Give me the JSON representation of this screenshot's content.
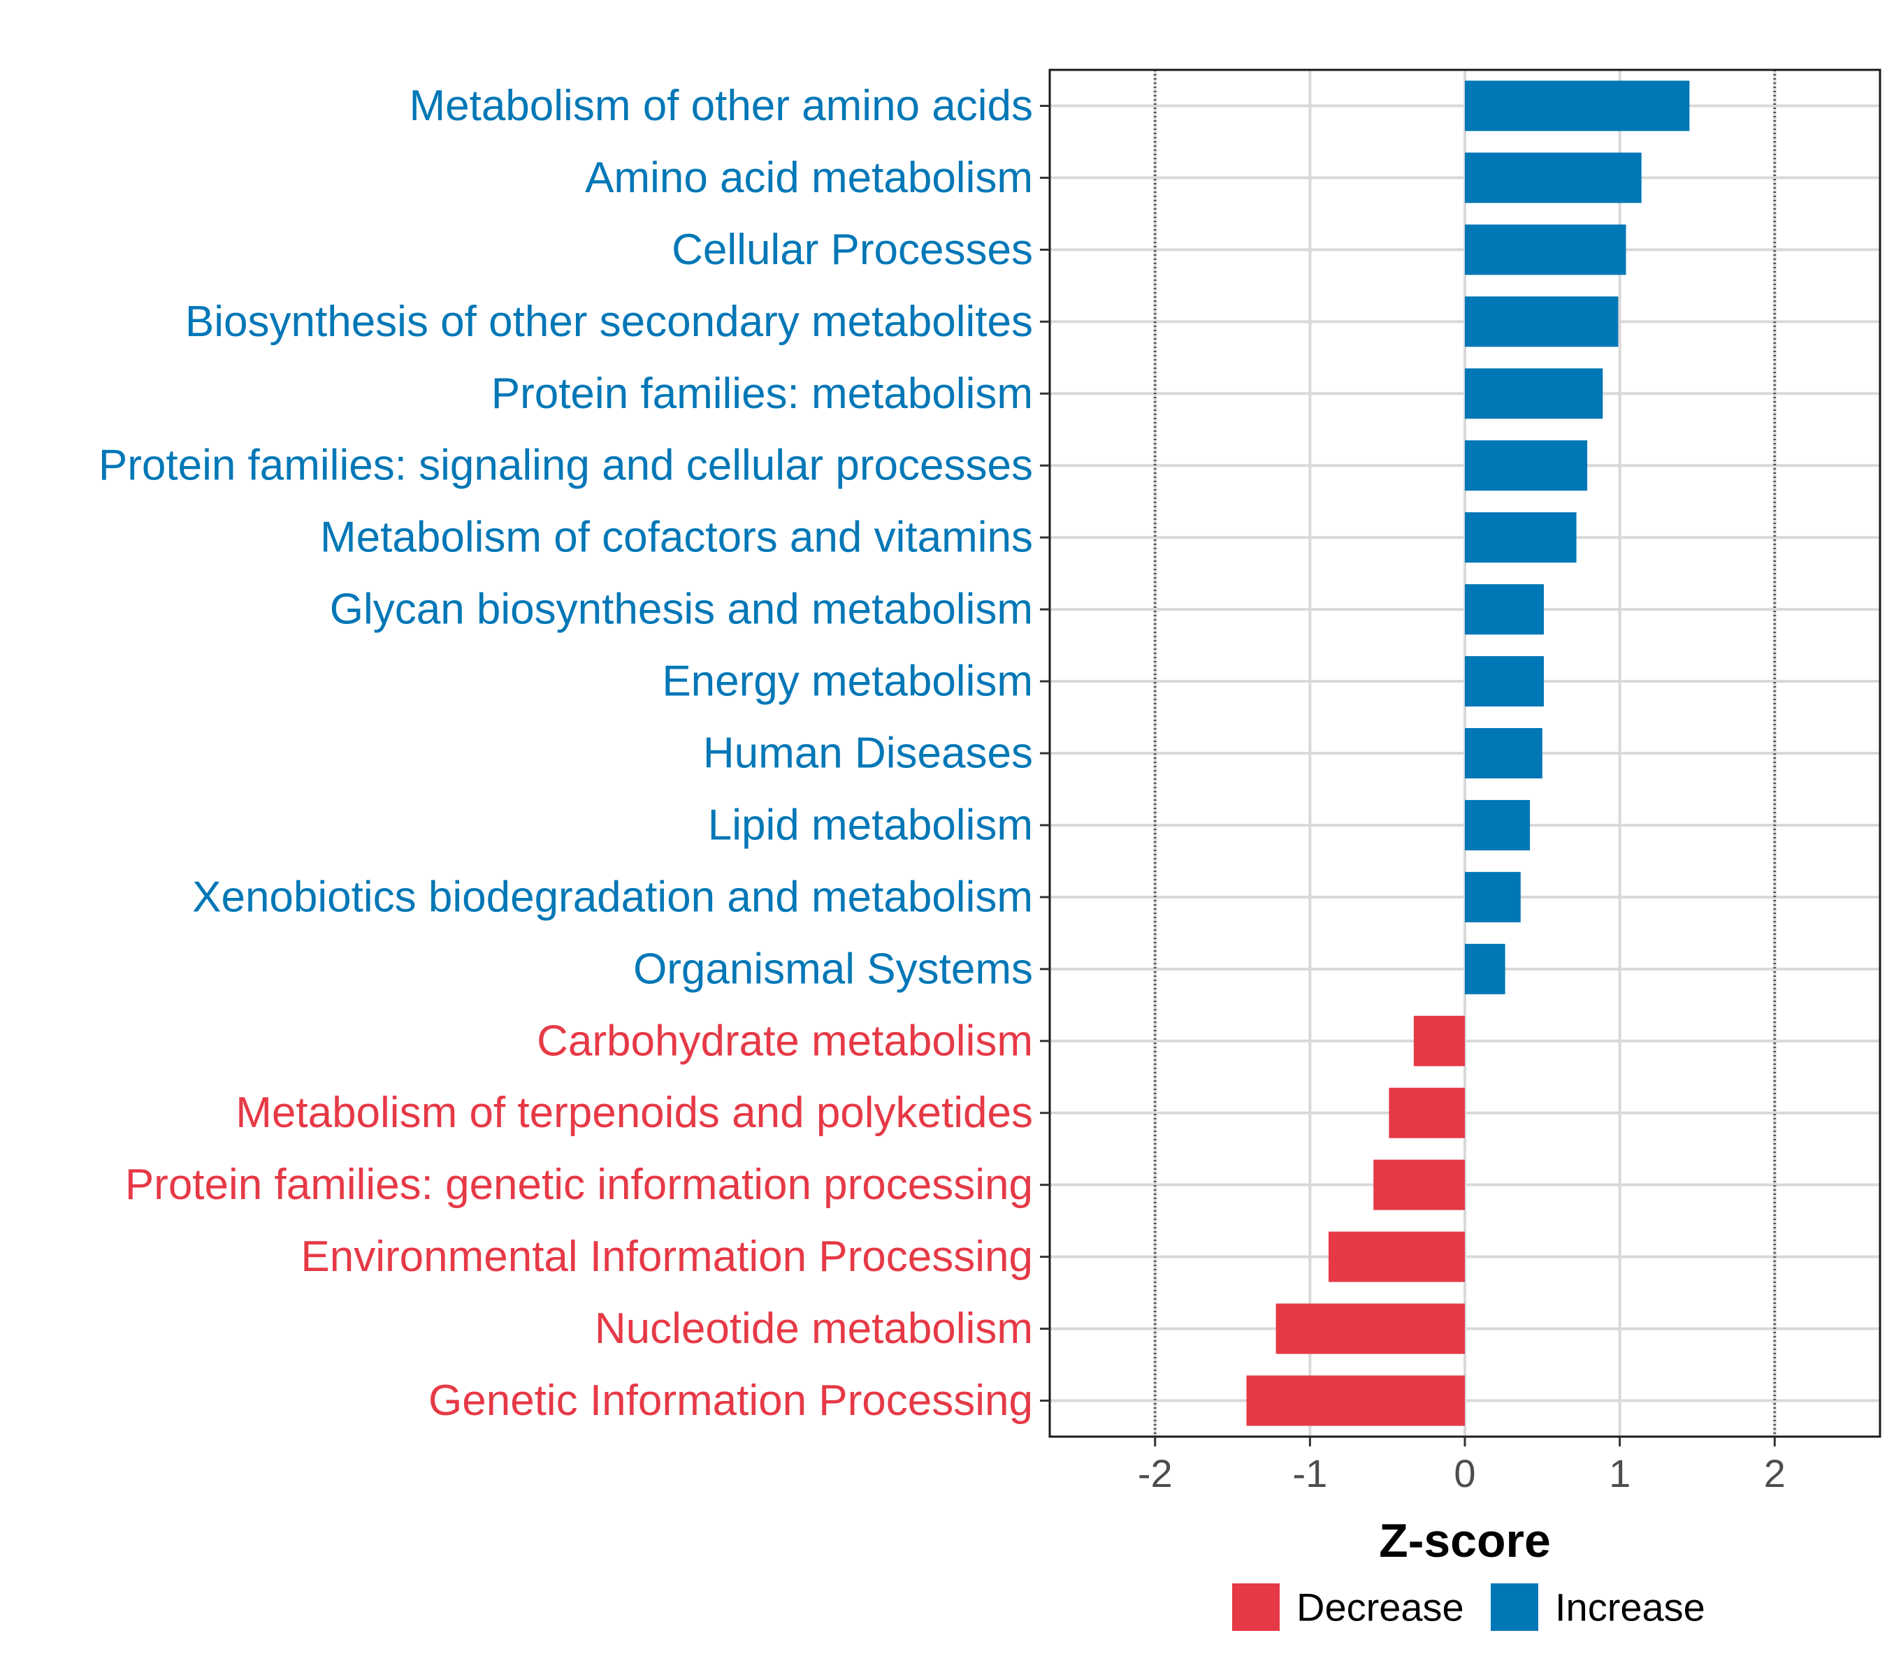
{
  "chart_data": {
    "type": "bar",
    "orientation": "horizontal",
    "categories": [
      "Metabolism of other amino acids",
      "Amino acid metabolism",
      "Cellular Processes",
      "Biosynthesis of other secondary metabolites",
      "Protein families: metabolism",
      "Protein families: signaling and cellular processes",
      "Metabolism of cofactors and vitamins",
      "Glycan biosynthesis and metabolism",
      "Energy metabolism",
      "Human Diseases",
      "Lipid metabolism",
      "Xenobiotics biodegradation and metabolism",
      "Organismal Systems",
      "Carbohydrate metabolism",
      "Metabolism of terpenoids and polyketides",
      "Protein families: genetic information processing",
      "Environmental Information Processing",
      "Nucleotide metabolism",
      "Genetic Information Processing"
    ],
    "values": [
      1.45,
      1.14,
      1.04,
      0.99,
      0.89,
      0.79,
      0.72,
      0.51,
      0.51,
      0.5,
      0.42,
      0.36,
      0.26,
      -0.33,
      -0.49,
      -0.59,
      -0.88,
      -1.22,
      -1.41
    ],
    "groups": [
      "Increase",
      "Increase",
      "Increase",
      "Increase",
      "Increase",
      "Increase",
      "Increase",
      "Increase",
      "Increase",
      "Increase",
      "Increase",
      "Increase",
      "Increase",
      "Decrease",
      "Decrease",
      "Decrease",
      "Decrease",
      "Decrease",
      "Decrease"
    ],
    "title": "",
    "xlabel": "Z-score",
    "ylabel": "",
    "xlim": [
      -2.68,
      2.68
    ],
    "xticks": [
      -2,
      -1,
      0,
      1,
      2
    ],
    "xtick_labels": [
      "-2",
      "-1",
      "0",
      "1",
      "2"
    ],
    "reference_lines": [
      -2,
      2
    ],
    "grid": true,
    "legend": {
      "position": "bottom",
      "entries": [
        {
          "label": "Decrease",
          "color": "#E63946"
        },
        {
          "label": "Increase",
          "color": "#0077B6"
        }
      ]
    },
    "colors": {
      "Increase": "#0077B6",
      "Decrease": "#E63946"
    }
  }
}
